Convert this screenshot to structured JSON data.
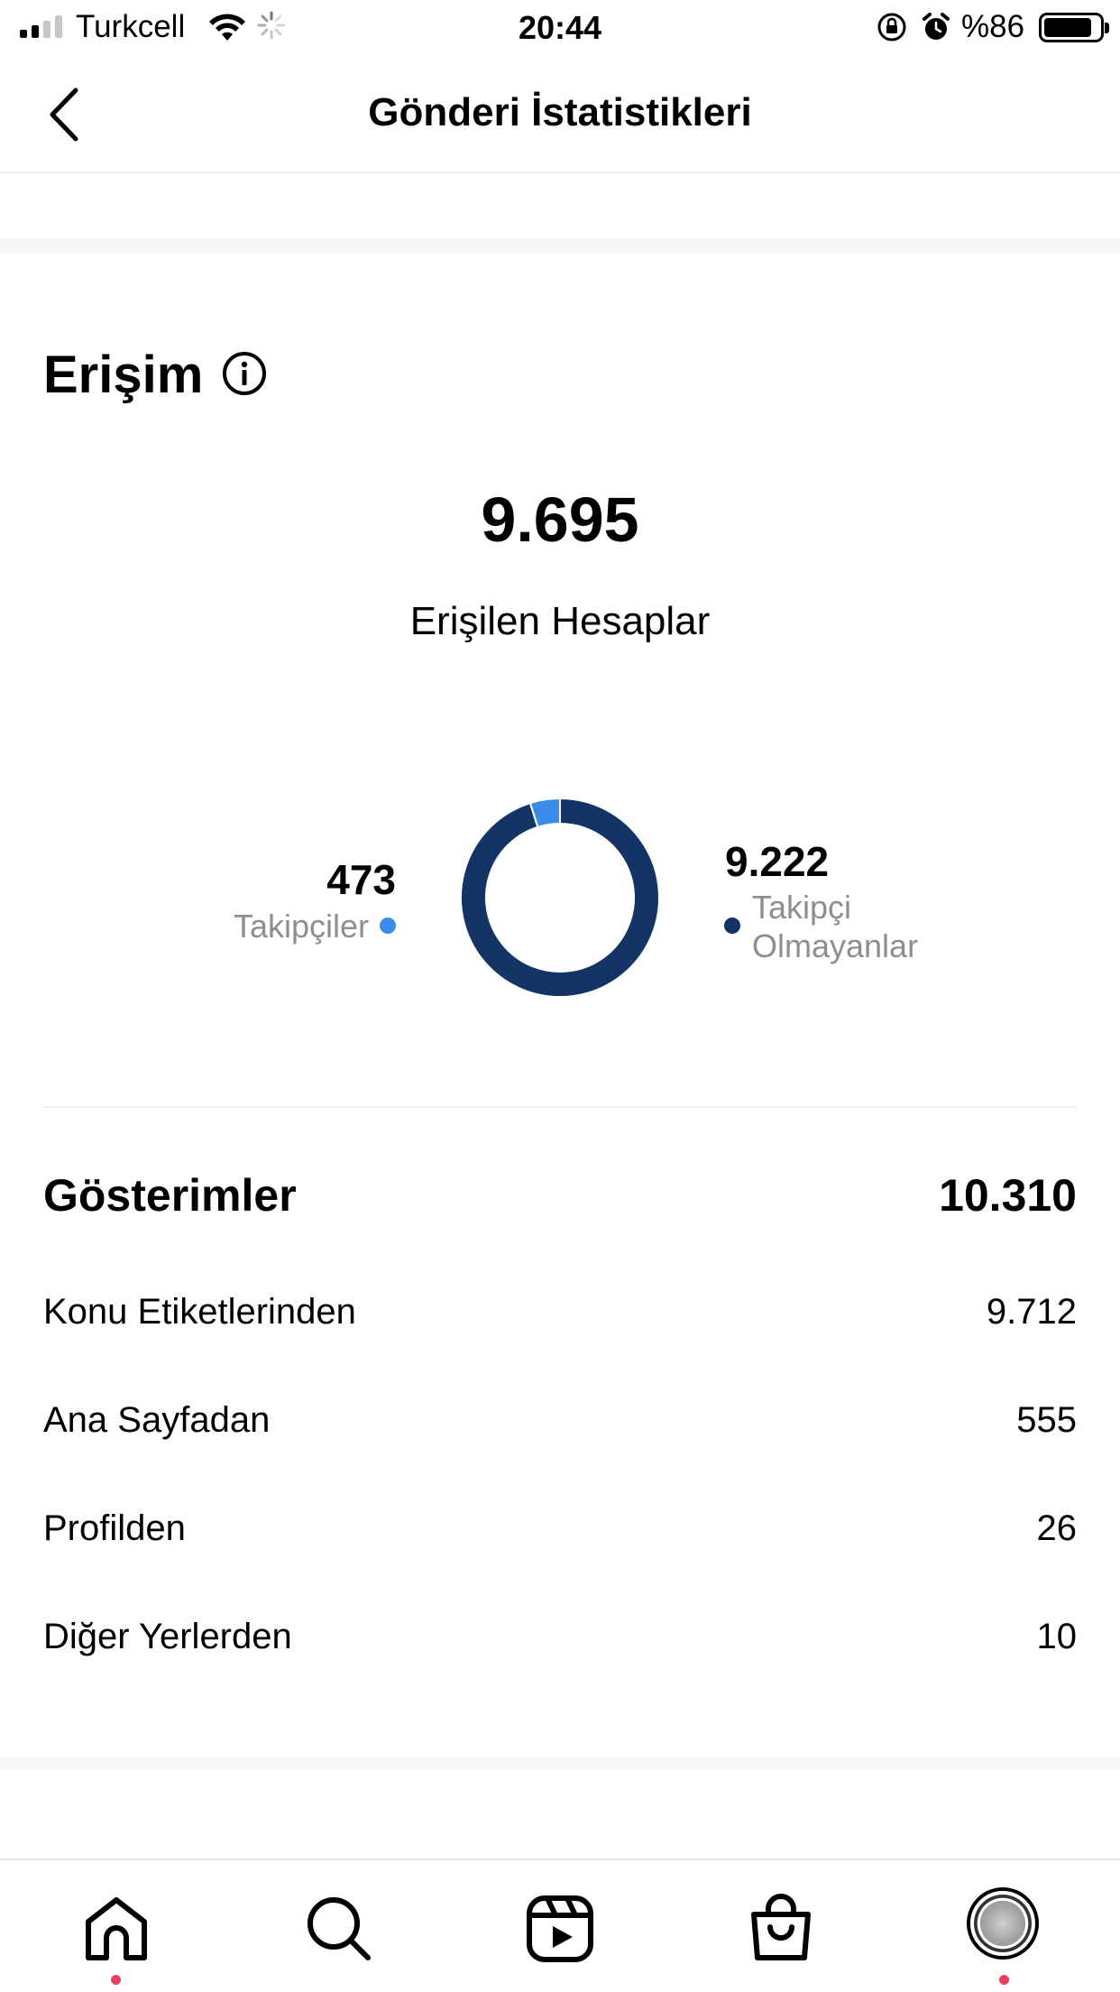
{
  "status_bar": {
    "carrier": "Turkcell",
    "time": "20:44",
    "battery_percent": "%86",
    "battery_level": 0.86
  },
  "header": {
    "title": "Gönderi İstatistikleri"
  },
  "reach": {
    "title": "Erişim",
    "accounts_reached": "9.695",
    "accounts_reached_label": "Erişilen Hesaplar",
    "followers_value": "473",
    "followers_label": "Takipçiler",
    "non_followers_value": "9.222",
    "non_followers_label_line1": "Takipçi",
    "non_followers_label_line2": "Olmayanlar",
    "colors": {
      "followers": "#3b8ce8",
      "non_followers": "#133464"
    }
  },
  "chart_data": {
    "type": "pie",
    "categories": [
      "Takipçiler",
      "Takipçi Olmayanlar"
    ],
    "values": [
      473,
      9222
    ]
  },
  "impressions": {
    "title": "Gösterimler",
    "total": "10.310",
    "rows": [
      {
        "label": "Konu Etiketlerinden",
        "value": "9.712"
      },
      {
        "label": "Ana Sayfadan",
        "value": "555"
      },
      {
        "label": "Profilden",
        "value": "26"
      },
      {
        "label": "Diğer Yerlerden",
        "value": "10"
      }
    ]
  },
  "tab_bar": {
    "items": [
      "home-icon",
      "search-icon",
      "reels-icon",
      "shop-icon",
      "profile-avatar"
    ],
    "active_dot_color": "#e9405a"
  }
}
